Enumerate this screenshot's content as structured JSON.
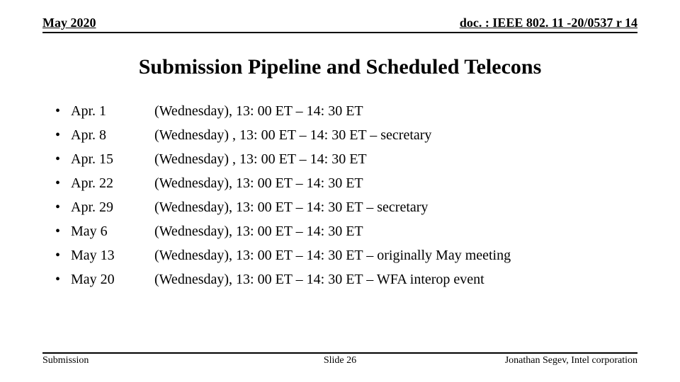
{
  "header": {
    "left": "May 2020",
    "right": "doc. : IEEE 802. 11 -20/0537 r 14"
  },
  "title": "Submission Pipeline and Scheduled Telecons",
  "schedule": [
    {
      "date": "Apr. 1",
      "desc": "(Wednesday), 13: 00 ET – 14: 30 ET"
    },
    {
      "date": "Apr. 8",
      "desc": "(Wednesday) , 13: 00 ET – 14: 30 ET – secretary"
    },
    {
      "date": "Apr. 15",
      "desc": "(Wednesday) , 13: 00 ET – 14: 30 ET"
    },
    {
      "date": "Apr. 22",
      "desc": "(Wednesday), 13: 00 ET – 14: 30 ET"
    },
    {
      "date": "Apr. 29",
      "desc": "(Wednesday), 13: 00 ET – 14: 30 ET – secretary"
    },
    {
      "date": "May 6",
      "desc": "(Wednesday), 13: 00 ET – 14: 30 ET"
    },
    {
      "date": "May 13",
      "desc": "(Wednesday), 13: 00 ET – 14: 30 ET – originally May meeting"
    },
    {
      "date": "May 20",
      "desc": "(Wednesday), 13: 00 ET – 14: 30 ET – WFA interop event"
    }
  ],
  "footer": {
    "left": "Submission",
    "center": "Slide 26",
    "right": "Jonathan Segev, Intel corporation"
  },
  "style": {
    "bullet": "•",
    "title_fontsize": 30,
    "body_fontsize": 20,
    "header_fontsize": 18,
    "footer_fontsize": 14,
    "text_color": "#000000",
    "background_color": "#ffffff",
    "rule_color": "#000000"
  }
}
